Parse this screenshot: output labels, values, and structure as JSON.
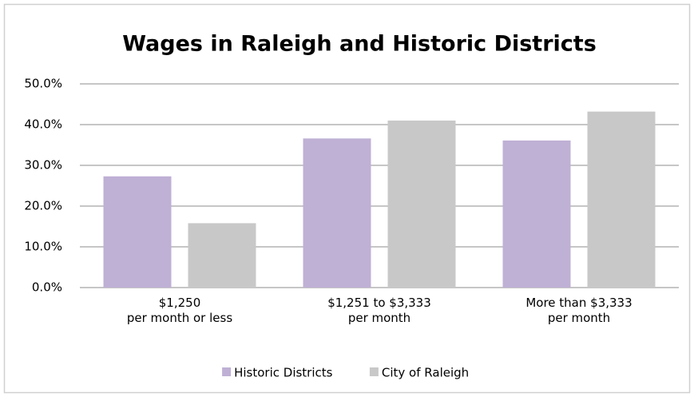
{
  "chart_data": {
    "type": "bar",
    "title": "Wages in Raleigh and Historic Districts",
    "categories": [
      "$1,250\nper month or less",
      "$1,251 to $3,333\nper month",
      "More than $3,333\nper month"
    ],
    "series": [
      {
        "name": "Historic Districts",
        "color": "#bfb0d5",
        "values": [
          27.3,
          36.6,
          36.1
        ]
      },
      {
        "name": "City of Raleigh",
        "color": "#c8c8c8",
        "values": [
          15.8,
          41.0,
          43.2
        ]
      }
    ],
    "ylim": [
      0,
      50
    ],
    "yticks": [
      {
        "value": 0,
        "label": "0.0%"
      },
      {
        "value": 10,
        "label": "10.0%"
      },
      {
        "value": 20,
        "label": "20.0%"
      },
      {
        "value": 30,
        "label": "30.0%"
      },
      {
        "value": 40,
        "label": "40.0%"
      },
      {
        "value": 50,
        "label": "50.0%"
      }
    ],
    "grid": true,
    "legend": "bottom"
  }
}
